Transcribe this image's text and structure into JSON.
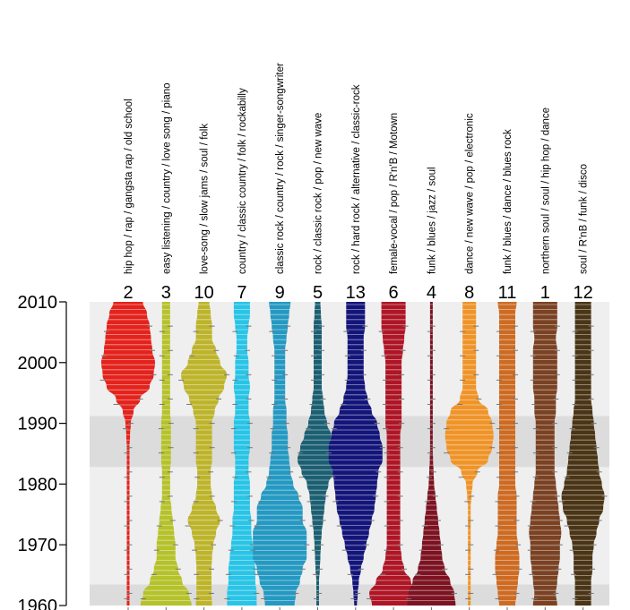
{
  "chart_data": {
    "type": "violin",
    "title": "",
    "xlabel": "",
    "ylabel": "",
    "ylim": [
      1960,
      2010
    ],
    "y_ticks": [
      1960,
      1970,
      1980,
      1990,
      2000,
      2010
    ],
    "background_bands": [
      {
        "from": 1960,
        "to": 1963.5,
        "shade": "dark"
      },
      {
        "from": 1963.5,
        "to": 1982.8,
        "shade": "light"
      },
      {
        "from": 1982.8,
        "to": 1991.2,
        "shade": "dark"
      },
      {
        "from": 1991.2,
        "to": 2010,
        "shade": "light"
      }
    ],
    "band_colors": {
      "light": "#efefef",
      "dark": "#dcdcdc"
    },
    "density_years": [
      1960,
      1962,
      1964,
      1966,
      1968,
      1970,
      1972,
      1974,
      1976,
      1978,
      1980,
      1982,
      1984,
      1986,
      1988,
      1990,
      1992,
      1994,
      1996,
      1998,
      2000,
      2002,
      2004,
      2006,
      2008,
      2010
    ],
    "series": [
      {
        "cluster": "2",
        "genres": "hip hop / rap / gangsta rap / old school",
        "color": "#e3231c",
        "density": [
          0.03,
          0.03,
          0.03,
          0.03,
          0.03,
          0.03,
          0.03,
          0.03,
          0.03,
          0.03,
          0.03,
          0.03,
          0.04,
          0.05,
          0.07,
          0.1,
          0.2,
          0.45,
          0.8,
          0.95,
          1.0,
          0.9,
          0.85,
          0.8,
          0.7,
          0.55
        ]
      },
      {
        "cluster": "3",
        "genres": "easy listening / country / love song / piano",
        "color": "#b5c22b",
        "density": [
          0.95,
          0.85,
          0.6,
          0.45,
          0.35,
          0.35,
          0.3,
          0.25,
          0.2,
          0.15,
          0.15,
          0.15,
          0.18,
          0.18,
          0.18,
          0.18,
          0.15,
          0.15,
          0.15,
          0.15,
          0.15,
          0.15,
          0.15,
          0.15,
          0.15,
          0.15
        ]
      },
      {
        "cluster": "10",
        "genres": "love-song / slow jams / soul / folk",
        "color": "#bdb42c",
        "density": [
          0.3,
          0.28,
          0.28,
          0.28,
          0.3,
          0.35,
          0.45,
          0.6,
          0.45,
          0.3,
          0.25,
          0.25,
          0.3,
          0.3,
          0.3,
          0.3,
          0.4,
          0.55,
          0.75,
          0.85,
          0.6,
          0.45,
          0.3,
          0.3,
          0.25,
          0.2
        ]
      },
      {
        "cluster": "7",
        "genres": "country / classic country / folk / rockabilly",
        "color": "#29c4e6",
        "density": [
          0.55,
          0.55,
          0.5,
          0.5,
          0.45,
          0.4,
          0.35,
          0.35,
          0.3,
          0.3,
          0.3,
          0.25,
          0.25,
          0.3,
          0.3,
          0.3,
          0.25,
          0.25,
          0.3,
          0.25,
          0.25,
          0.2,
          0.2,
          0.25,
          0.3,
          0.3
        ]
      },
      {
        "cluster": "9",
        "genres": "classic rock / country / rock / singer-songwriter",
        "color": "#2599c2",
        "density": [
          0.55,
          0.6,
          0.75,
          0.85,
          1.0,
          1.0,
          1.0,
          0.85,
          0.85,
          0.7,
          0.5,
          0.4,
          0.35,
          0.3,
          0.3,
          0.25,
          0.25,
          0.2,
          0.2,
          0.2,
          0.2,
          0.2,
          0.25,
          0.3,
          0.35,
          0.4
        ]
      },
      {
        "cluster": "5",
        "genres": "rock / classic rock / pop / new wave",
        "color": "#1c5f72",
        "density": [
          0.05,
          0.05,
          0.05,
          0.08,
          0.1,
          0.12,
          0.15,
          0.2,
          0.25,
          0.3,
          0.4,
          0.6,
          0.75,
          0.65,
          0.5,
          0.35,
          0.25,
          0.2,
          0.15,
          0.15,
          0.15,
          0.15,
          0.15,
          0.15,
          0.12,
          0.1
        ]
      },
      {
        "cluster": "13",
        "genres": "rock / hard rock / alternative / classic-rock",
        "color": "#14157a",
        "density": [
          0.05,
          0.08,
          0.12,
          0.2,
          0.3,
          0.4,
          0.5,
          0.6,
          0.7,
          0.75,
          0.8,
          0.85,
          1.0,
          1.0,
          0.9,
          0.8,
          0.6,
          0.45,
          0.35,
          0.3,
          0.3,
          0.3,
          0.3,
          0.35,
          0.35,
          0.35
        ]
      },
      {
        "cluster": "6",
        "genres": "female-vocal / pop / R'n'B / Motown",
        "color": "#ae1626",
        "density": [
          0.8,
          0.9,
          0.65,
          0.4,
          0.3,
          0.25,
          0.25,
          0.25,
          0.25,
          0.25,
          0.25,
          0.25,
          0.25,
          0.25,
          0.25,
          0.3,
          0.3,
          0.3,
          0.3,
          0.3,
          0.3,
          0.35,
          0.4,
          0.45,
          0.45,
          0.45
        ]
      },
      {
        "cluster": "4",
        "genres": "funk / blues / jazz / soul",
        "color": "#7d1322",
        "density": [
          0.9,
          0.85,
          0.7,
          0.5,
          0.4,
          0.35,
          0.3,
          0.25,
          0.2,
          0.15,
          0.1,
          0.08,
          0.06,
          0.05,
          0.05,
          0.05,
          0.05,
          0.05,
          0.05,
          0.05,
          0.05,
          0.05,
          0.05,
          0.05,
          0.05,
          0.05
        ]
      },
      {
        "cluster": "8",
        "genres": "dance / new wave / pop / electronic",
        "color": "#ef9428",
        "density": [
          0.05,
          0.05,
          0.05,
          0.05,
          0.05,
          0.05,
          0.05,
          0.05,
          0.05,
          0.08,
          0.12,
          0.3,
          0.7,
          0.85,
          0.9,
          0.85,
          0.7,
          0.35,
          0.25,
          0.25,
          0.25,
          0.25,
          0.25,
          0.25,
          0.25,
          0.25
        ]
      },
      {
        "cluster": "11",
        "genres": "funk / blues / dance / blues rock",
        "color": "#cd6b23",
        "density": [
          0.3,
          0.35,
          0.4,
          0.45,
          0.45,
          0.4,
          0.35,
          0.35,
          0.35,
          0.35,
          0.3,
          0.3,
          0.3,
          0.3,
          0.3,
          0.3,
          0.3,
          0.3,
          0.3,
          0.3,
          0.3,
          0.3,
          0.3,
          0.3,
          0.3,
          0.35
        ]
      },
      {
        "cluster": "1",
        "genres": "northern soul / soul / hip hop / dance",
        "color": "#7a4223",
        "density": [
          0.45,
          0.4,
          0.45,
          0.5,
          0.55,
          0.55,
          0.6,
          0.55,
          0.5,
          0.45,
          0.4,
          0.35,
          0.35,
          0.35,
          0.35,
          0.35,
          0.4,
          0.4,
          0.45,
          0.45,
          0.45,
          0.45,
          0.4,
          0.45,
          0.45,
          0.45
        ]
      },
      {
        "cluster": "12",
        "genres": "soul / R'nB / funk / disco",
        "color": "#4a3516",
        "density": [
          0.3,
          0.3,
          0.3,
          0.35,
          0.35,
          0.4,
          0.5,
          0.6,
          0.75,
          0.8,
          0.7,
          0.6,
          0.55,
          0.5,
          0.45,
          0.4,
          0.35,
          0.3,
          0.3,
          0.3,
          0.3,
          0.3,
          0.3,
          0.3,
          0.3,
          0.3
        ]
      }
    ]
  }
}
